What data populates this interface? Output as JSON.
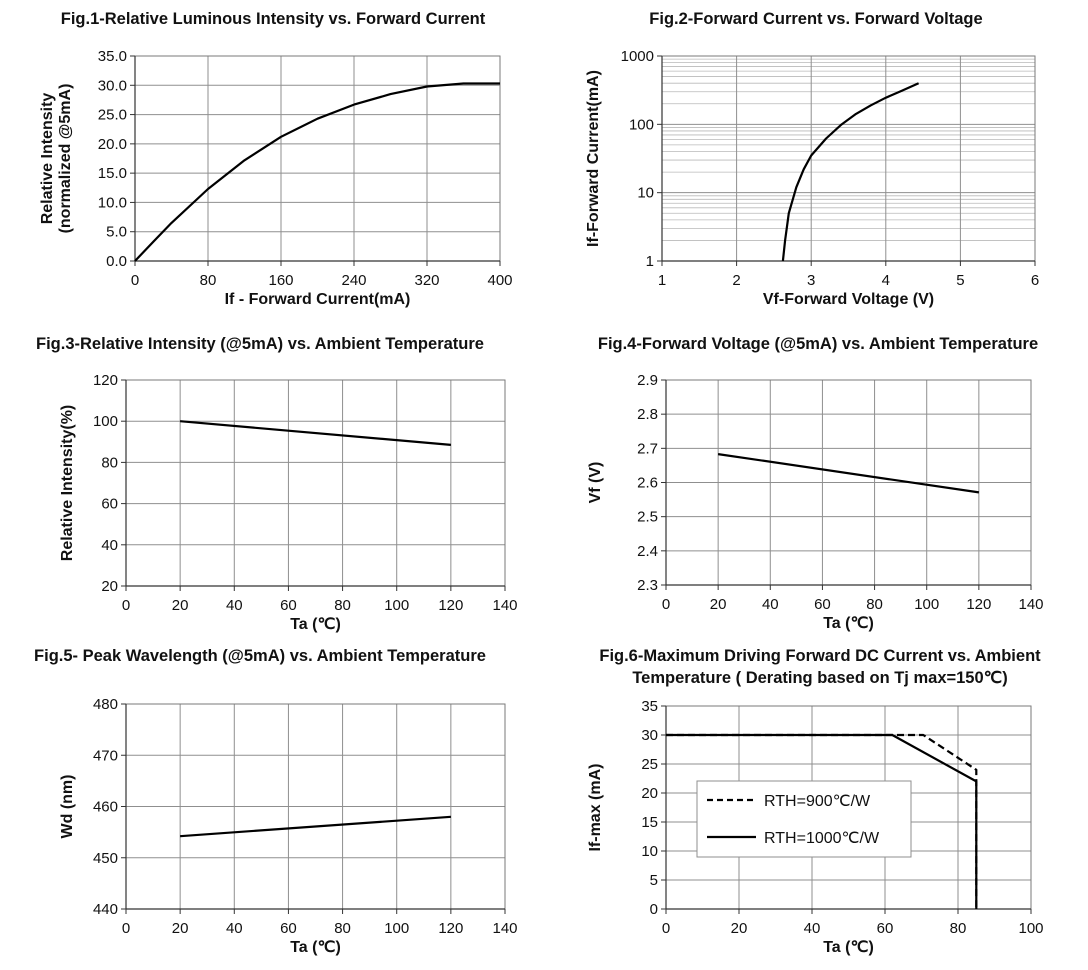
{
  "chart_data": [
    {
      "id": "fig1",
      "type": "line",
      "title": "Fig.1-Relative Luminous Intensity vs. Forward Current",
      "xlabel": "If - Forward Current(mA)",
      "ylabel": [
        "Relative  Intensity",
        "(normalized @5mA)"
      ],
      "xlim": [
        0,
        400
      ],
      "ylim": [
        0,
        35
      ],
      "xticks": [
        0,
        80,
        160,
        240,
        320,
        400
      ],
      "xtick_labels": [
        "0",
        "80",
        "160",
        "240",
        "320",
        "400"
      ],
      "yticks": [
        0,
        5,
        10,
        15,
        20,
        25,
        30,
        35
      ],
      "ytick_labels": [
        "0.0",
        "5.0",
        "10.0",
        "15.0",
        "20.0",
        "25.0",
        "30.0",
        "35.0"
      ],
      "grid": true,
      "series": [
        {
          "x": [
            0,
            20,
            40,
            80,
            120,
            160,
            200,
            240,
            280,
            320,
            360,
            400
          ],
          "y": [
            0,
            3.3,
            6.5,
            12.3,
            17.2,
            21.2,
            24.3,
            26.7,
            28.5,
            29.8,
            30.3,
            30.3
          ]
        }
      ]
    },
    {
      "id": "fig2",
      "type": "line",
      "title": "Fig.2-Forward Current vs. Forward Voltage",
      "xlabel": "Vf-Forward Voltage (V)",
      "ylabel": [
        "If-Forward Current(mA)"
      ],
      "xlim": [
        1,
        6
      ],
      "ylim": [
        1,
        1000
      ],
      "yscale": "log",
      "xticks": [
        1,
        2,
        3,
        4,
        5,
        6
      ],
      "xtick_labels": [
        "1",
        "2",
        "3",
        "4",
        "5",
        "6"
      ],
      "yticks": [
        1,
        10,
        100,
        1000
      ],
      "ytick_labels": [
        "1",
        "10",
        "100",
        "1000"
      ],
      "grid": true,
      "series": [
        {
          "x": [
            2.62,
            2.65,
            2.7,
            2.8,
            2.9,
            3.0,
            3.2,
            3.4,
            3.6,
            3.8,
            4.0,
            4.2,
            4.44
          ],
          "y": [
            1,
            2,
            5,
            12,
            22,
            35,
            62,
            98,
            142,
            190,
            245,
            305,
            400
          ]
        }
      ]
    },
    {
      "id": "fig3",
      "type": "line",
      "title": "Fig.3-Relative Intensity (@5mA) vs. Ambient Temperature",
      "xlabel": "Ta (℃)",
      "ylabel": [
        "Relative Intensity(%)"
      ],
      "xlim": [
        0,
        140
      ],
      "ylim": [
        20,
        120
      ],
      "xticks": [
        0,
        20,
        40,
        60,
        80,
        100,
        120,
        140
      ],
      "xtick_labels": [
        "0",
        "20",
        "40",
        "60",
        "80",
        "100",
        "120",
        "140"
      ],
      "yticks": [
        20,
        40,
        60,
        80,
        100,
        120
      ],
      "ytick_labels": [
        "20",
        "40",
        "60",
        "80",
        "100",
        "120"
      ],
      "grid": true,
      "series": [
        {
          "x": [
            20,
            120
          ],
          "y": [
            100,
            88.5
          ]
        }
      ]
    },
    {
      "id": "fig4",
      "type": "line",
      "title": "Fig.4-Forward Voltage (@5mA) vs. Ambient Temperature",
      "xlabel": "Ta (℃)",
      "ylabel": [
        "Vf (V)"
      ],
      "xlim": [
        0,
        140
      ],
      "ylim": [
        2.3,
        2.9
      ],
      "xticks": [
        0,
        20,
        40,
        60,
        80,
        100,
        120,
        140
      ],
      "xtick_labels": [
        "0",
        "20",
        "40",
        "60",
        "80",
        "100",
        "120",
        "140"
      ],
      "yticks": [
        2.3,
        2.4,
        2.5,
        2.6,
        2.7,
        2.8,
        2.9
      ],
      "ytick_labels": [
        "2.3",
        "2.4",
        "2.5",
        "2.6",
        "2.7",
        "2.8",
        "2.9"
      ],
      "grid": true,
      "series": [
        {
          "x": [
            20,
            120
          ],
          "y": [
            2.683,
            2.571
          ]
        }
      ]
    },
    {
      "id": "fig5",
      "type": "line",
      "title": "Fig.5- Peak Wavelength (@5mA) vs. Ambient Temperature",
      "xlabel": "Ta (℃)",
      "ylabel": [
        "Wd (nm)"
      ],
      "xlim": [
        0,
        140
      ],
      "ylim": [
        440,
        480
      ],
      "xticks": [
        0,
        20,
        40,
        60,
        80,
        100,
        120,
        140
      ],
      "xtick_labels": [
        "0",
        "20",
        "40",
        "60",
        "80",
        "100",
        "120",
        "140"
      ],
      "yticks": [
        440,
        450,
        460,
        470,
        480
      ],
      "ytick_labels": [
        "440",
        "450",
        "460",
        "470",
        "480"
      ],
      "grid": true,
      "series": [
        {
          "x": [
            20,
            120
          ],
          "y": [
            454.2,
            458
          ]
        }
      ]
    },
    {
      "id": "fig6",
      "type": "line",
      "title": "Fig.6-Maximum Driving Forward DC Current vs. Ambient Temperature ( Derating based on Tj max=150℃)",
      "xlabel": "Ta (℃)",
      "ylabel": [
        "If-max (mA)"
      ],
      "xlim": [
        0,
        100
      ],
      "ylim": [
        0,
        35
      ],
      "xticks": [
        0,
        20,
        40,
        60,
        80,
        100
      ],
      "xtick_labels": [
        "0",
        "20",
        "40",
        "60",
        "80",
        "100"
      ],
      "yticks": [
        0,
        5,
        10,
        15,
        20,
        25,
        30,
        35
      ],
      "ytick_labels": [
        "0",
        "5",
        "10",
        "15",
        "20",
        "25",
        "30",
        "35"
      ],
      "grid": true,
      "legend": "inside-bottom-left",
      "series": [
        {
          "name": "RTH=900℃/W",
          "style": "dashed",
          "x": [
            0,
            70.5,
            85,
            85
          ],
          "y": [
            30,
            30,
            24,
            0
          ]
        },
        {
          "name": "RTH=1000℃/W",
          "style": "solid",
          "x": [
            0,
            62,
            85,
            85
          ],
          "y": [
            30,
            30,
            22,
            0
          ]
        }
      ]
    }
  ]
}
